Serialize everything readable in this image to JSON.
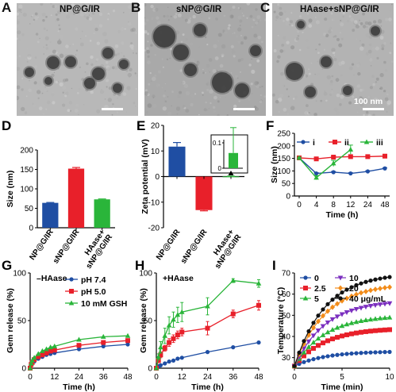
{
  "tem_panels": [
    {
      "letter": "A",
      "title": "NP@G/IR"
    },
    {
      "letter": "B",
      "title": "sNP@G/IR"
    },
    {
      "letter": "C",
      "title": "HAase+sNP@G/IR",
      "scale_text": "100 nm"
    }
  ],
  "colors": {
    "blue": "#1f4ea3",
    "red": "#e8202a",
    "green": "#2ab53a",
    "purple": "#7b2fbf",
    "orange": "#f28c1a",
    "black": "#111111"
  },
  "chart_data": [
    {
      "id": "D",
      "letter": "D",
      "type": "bar",
      "ylabel": "Size (nm)",
      "ylim": [
        0,
        200
      ],
      "yticks": [
        0,
        50,
        100,
        150,
        200
      ],
      "categories": [
        "NP@G/IR",
        "sNP@G/IR",
        "HAase+\nsNP@G/IR"
      ],
      "values": [
        64,
        152,
        73
      ],
      "errors": [
        1,
        3,
        1
      ],
      "colors": [
        "#1f4ea3",
        "#e8202a",
        "#2ab53a"
      ]
    },
    {
      "id": "E",
      "letter": "E",
      "type": "bar",
      "ylabel": "Zeta potential (mV)",
      "ylim": [
        -20,
        20
      ],
      "yticks": [
        -20,
        -10,
        0,
        10,
        20
      ],
      "categories": [
        "NP@G/IR",
        "sNP@G/IR",
        "HAase+\nsNP@G/IR"
      ],
      "values": [
        11.7,
        -13.1,
        0.06
      ],
      "errors": [
        1.6,
        0.3,
        0.1
      ],
      "colors": [
        "#1f4ea3",
        "#e8202a",
        "#2ab53a"
      ],
      "inset": {
        "ylim": [
          0,
          0.1
        ],
        "yticks": [
          0,
          0.1
        ],
        "value": 0.06,
        "error": 0.1
      }
    },
    {
      "id": "F",
      "letter": "F",
      "type": "line",
      "xlabel": "Time (h)",
      "ylabel": "Size (nm)",
      "x": [
        0,
        4,
        8,
        12,
        24,
        48
      ],
      "xticks": [
        0,
        4,
        8,
        12,
        24,
        48
      ],
      "ylim": [
        0,
        250
      ],
      "yticks": [
        0,
        50,
        100,
        150,
        200,
        250
      ],
      "legend_position": "top",
      "series": [
        {
          "name": "i",
          "color": "#1f4ea3",
          "marker": "circle",
          "x": [
            0,
            4,
            8,
            12,
            24,
            48
          ],
          "values": [
            152,
            90,
            95,
            90,
            98,
            110
          ],
          "errors": [
            3,
            3,
            3,
            3,
            3,
            3
          ]
        },
        {
          "name": "ii",
          "color": "#e8202a",
          "marker": "square",
          "x": [
            0,
            4,
            8,
            12,
            24,
            48
          ],
          "values": [
            152,
            148,
            155,
            157,
            157,
            159
          ],
          "errors": [
            3,
            3,
            3,
            3,
            3,
            3
          ]
        },
        {
          "name": "iii",
          "color": "#2ab53a",
          "marker": "triangle",
          "x": [
            0,
            4,
            8,
            12
          ],
          "values": [
            152,
            73,
            130,
            185
          ],
          "errors": [
            3,
            8,
            12,
            18
          ]
        }
      ]
    },
    {
      "id": "G",
      "letter": "G",
      "type": "line",
      "xlabel": "Time (h)",
      "ylabel": "Gem release (%)",
      "xlim": [
        0,
        48
      ],
      "xticks": [
        0,
        12,
        24,
        36,
        48
      ],
      "ylim": [
        0,
        100
      ],
      "yticks": [
        0,
        50,
        100
      ],
      "annotation": "–HAase",
      "legend_position": "top-right",
      "series": [
        {
          "name": "pH 7.4",
          "color": "#1f4ea3",
          "marker": "circle",
          "x": [
            0,
            0.5,
            1,
            2,
            4,
            6,
            8,
            10,
            12,
            24,
            36,
            48
          ],
          "values": [
            0,
            3,
            5,
            7,
            10,
            12,
            14,
            15,
            16,
            20,
            23,
            25
          ]
        },
        {
          "name": "pH 5.0",
          "color": "#e8202a",
          "marker": "square",
          "x": [
            0,
            0.5,
            1,
            2,
            4,
            6,
            8,
            10,
            12,
            24,
            36,
            48
          ],
          "values": [
            0,
            4,
            6,
            9,
            12,
            14,
            16,
            18,
            19,
            24,
            27,
            29
          ]
        },
        {
          "name": "10 mM GSH",
          "color": "#2ab53a",
          "marker": "triangle",
          "x": [
            0,
            0.5,
            1,
            2,
            4,
            6,
            8,
            10,
            12,
            24,
            36,
            48
          ],
          "values": [
            0,
            5,
            8,
            11,
            15,
            18,
            20,
            22,
            23,
            30,
            33,
            34
          ]
        }
      ]
    },
    {
      "id": "H",
      "letter": "H",
      "type": "line",
      "xlabel": "Time (h)",
      "ylabel": "Gem release (%)",
      "xlim": [
        0,
        48
      ],
      "xticks": [
        0,
        12,
        24,
        36,
        48
      ],
      "ylim": [
        0,
        100
      ],
      "yticks": [
        0,
        50,
        100
      ],
      "annotation": "+HAase",
      "series": [
        {
          "name": "pH 7.4",
          "color": "#1f4ea3",
          "marker": "circle",
          "x": [
            0,
            1,
            2,
            4,
            6,
            8,
            10,
            12,
            24,
            36,
            48
          ],
          "values": [
            0,
            2,
            3,
            5,
            7,
            8,
            10,
            11,
            17,
            22,
            27
          ],
          "errors": [
            0,
            0,
            0,
            0,
            0,
            0,
            0,
            0,
            1,
            1,
            1
          ]
        },
        {
          "name": "pH 5.0",
          "color": "#e8202a",
          "marker": "square",
          "x": [
            0,
            1,
            2,
            4,
            6,
            8,
            10,
            12,
            24,
            36,
            48
          ],
          "values": [
            0,
            8,
            14,
            21,
            27,
            31,
            35,
            38,
            42,
            57,
            66
          ],
          "errors": [
            0,
            2,
            3,
            3,
            4,
            4,
            4,
            4,
            7,
            4,
            5
          ]
        },
        {
          "name": "10 mM GSH",
          "color": "#2ab53a",
          "marker": "triangle",
          "x": [
            0,
            1,
            2,
            4,
            6,
            8,
            10,
            12,
            24,
            36,
            48
          ],
          "values": [
            0,
            12,
            22,
            34,
            45,
            51,
            56,
            59,
            65,
            92,
            89
          ],
          "errors": [
            0,
            3,
            6,
            8,
            9,
            8,
            8,
            10,
            9,
            2,
            4
          ]
        }
      ]
    },
    {
      "id": "I",
      "letter": "I",
      "type": "line",
      "xlabel": "Time (min)",
      "ylabel": "Temperature (°C)",
      "xlim": [
        0,
        10
      ],
      "xticks": [
        0,
        5,
        10
      ],
      "ylim": [
        25,
        70
      ],
      "yticks": [
        30,
        40,
        50,
        60,
        70
      ],
      "legend_position": "top-left",
      "series": [
        {
          "name": "0",
          "color": "#1f4ea3",
          "marker": "circle",
          "plateau": 33
        },
        {
          "name": "2.5",
          "color": "#e8202a",
          "marker": "square",
          "plateau": 44
        },
        {
          "name": "5",
          "color": "#2ab53a",
          "marker": "triangle",
          "plateau": 50
        },
        {
          "name": "10",
          "color": "#7b2fbf",
          "marker": "triangle-down",
          "plateau": 57
        },
        {
          "name": "20",
          "color": "#f28c1a",
          "marker": "diamond",
          "plateau": 65
        },
        {
          "name": "40 μg/mL",
          "color": "#111111",
          "marker": "circle",
          "plateau": 70
        }
      ],
      "x": [
        0,
        0.5,
        1,
        1.5,
        2,
        2.5,
        3,
        3.5,
        4,
        4.5,
        5,
        5.5,
        6,
        6.5,
        7,
        7.5,
        8,
        8.5,
        9,
        9.5,
        10
      ]
    }
  ]
}
